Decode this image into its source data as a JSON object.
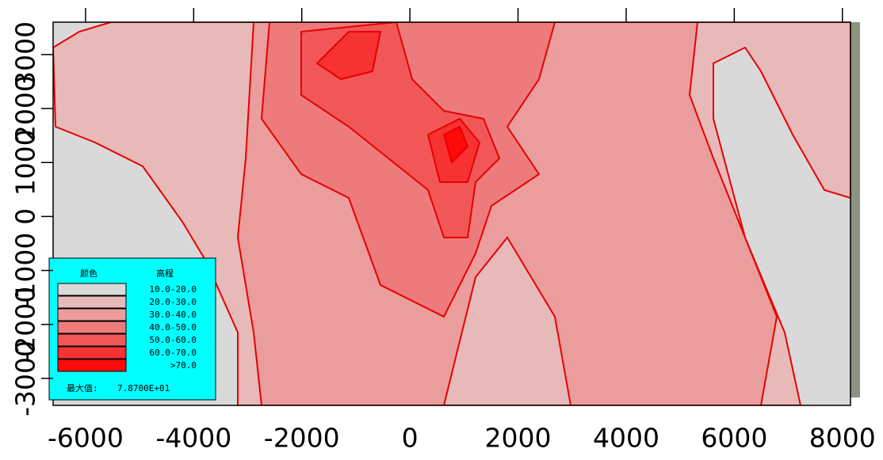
{
  "chart_data": {
    "type": "contour",
    "xlim": [
      -6600,
      8150
    ],
    "ylim": [
      -3500,
      3600
    ],
    "xticks": [
      -6000,
      -4000,
      -2000,
      0,
      2000,
      4000,
      6000,
      8000
    ],
    "yticks": [
      -3000,
      -2000,
      -1000,
      0,
      1000,
      2000,
      3000
    ],
    "line_color": "#e60000",
    "legend": {
      "headers": [
        "颜色",
        "高程"
      ],
      "items": [
        {
          "label": "10.0-20.0",
          "color": "#d9d9d9"
        },
        {
          "label": "20.0-30.0",
          "color": "#e8b9b9"
        },
        {
          "label": "30.0-40.0",
          "color": "#eb9c9c"
        },
        {
          "label": "40.0-50.0",
          "color": "#ee7b7b"
        },
        {
          "label": "50.0-60.0",
          "color": "#f25757"
        },
        {
          "label": "60.0-70.0",
          "color": "#f63232"
        },
        {
          "label": ">70.0",
          "color": "#ff0a0a"
        }
      ],
      "max_label": "最大值:",
      "max_value": "7.8700E+01"
    }
  }
}
